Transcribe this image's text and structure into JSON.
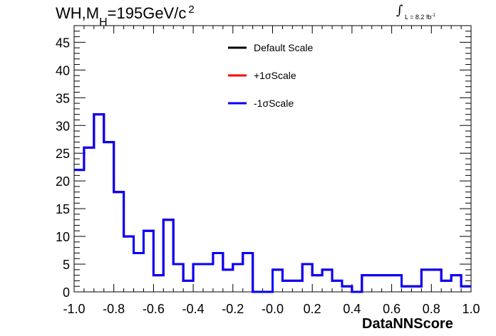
{
  "title": {
    "prefix": "WH,M",
    "sub": "H",
    "main": "=195GeV/c",
    "sup": "2"
  },
  "luminosity": {
    "symbol": "∫",
    "text": "L = 8.2 fb",
    "sup": "-1"
  },
  "legend": [
    {
      "label": "Default Scale",
      "color": "#000000"
    },
    {
      "label": "+1σScale",
      "color": "#ff0000"
    },
    {
      "label": "-1σScale",
      "color": "#0000ff"
    }
  ],
  "chart_data": {
    "type": "step-histogram",
    "xlabel": "DataNNScore",
    "ylabel": "",
    "xlim": [
      -1.0,
      1.0
    ],
    "ylim": [
      0,
      48
    ],
    "x_ticks": [
      "-1.0",
      "-0.8",
      "-0.6",
      "-0.4",
      "-0.2",
      "-0.0",
      "0.2",
      "0.4",
      "0.6",
      "0.8",
      "1.0"
    ],
    "y_ticks": [
      "0",
      "5",
      "10",
      "15",
      "20",
      "25",
      "30",
      "35",
      "40",
      "45"
    ],
    "bin_edges": [
      -1.0,
      -0.95,
      -0.9,
      -0.85,
      -0.8,
      -0.75,
      -0.7,
      -0.65,
      -0.6,
      -0.55,
      -0.5,
      -0.45,
      -0.4,
      -0.35,
      -0.3,
      -0.25,
      -0.2,
      -0.15,
      -0.1,
      -0.05,
      0.0,
      0.05,
      0.1,
      0.15,
      0.2,
      0.25,
      0.3,
      0.35,
      0.4,
      0.45,
      0.5,
      0.55,
      0.6,
      0.65,
      0.7,
      0.75,
      0.8,
      0.85,
      0.9,
      0.95,
      1.0
    ],
    "series": [
      {
        "name": "Default Scale",
        "color": "#000000",
        "values": [
          22,
          26,
          32,
          27,
          18,
          10,
          7,
          11,
          3,
          13,
          5,
          2,
          5,
          5,
          7,
          4,
          5,
          7,
          0,
          0,
          4,
          2,
          2,
          5,
          3,
          4,
          2,
          1,
          0,
          3,
          3,
          3,
          3,
          1,
          1,
          4,
          4,
          2,
          3,
          1
        ]
      },
      {
        "name": "+1σScale",
        "color": "#ff0000",
        "values": [
          22,
          26,
          32,
          27,
          18,
          10,
          7,
          11,
          3,
          13,
          5,
          2,
          5,
          5,
          7,
          4,
          5,
          7,
          0,
          0,
          4,
          2,
          2,
          5,
          3,
          4,
          2,
          1,
          0,
          3,
          3,
          3,
          3,
          1,
          1,
          4,
          4,
          2,
          3,
          1
        ]
      },
      {
        "name": "-1σScale",
        "color": "#0000ff",
        "values": [
          22,
          26,
          32,
          27,
          18,
          10,
          7,
          11,
          3,
          13,
          5,
          2,
          5,
          5,
          7,
          4,
          5,
          7,
          0,
          0,
          4,
          2,
          2,
          5,
          3,
          4,
          2,
          1,
          0,
          3,
          3,
          3,
          3,
          1,
          1,
          4,
          4,
          2,
          3,
          1
        ]
      }
    ]
  }
}
